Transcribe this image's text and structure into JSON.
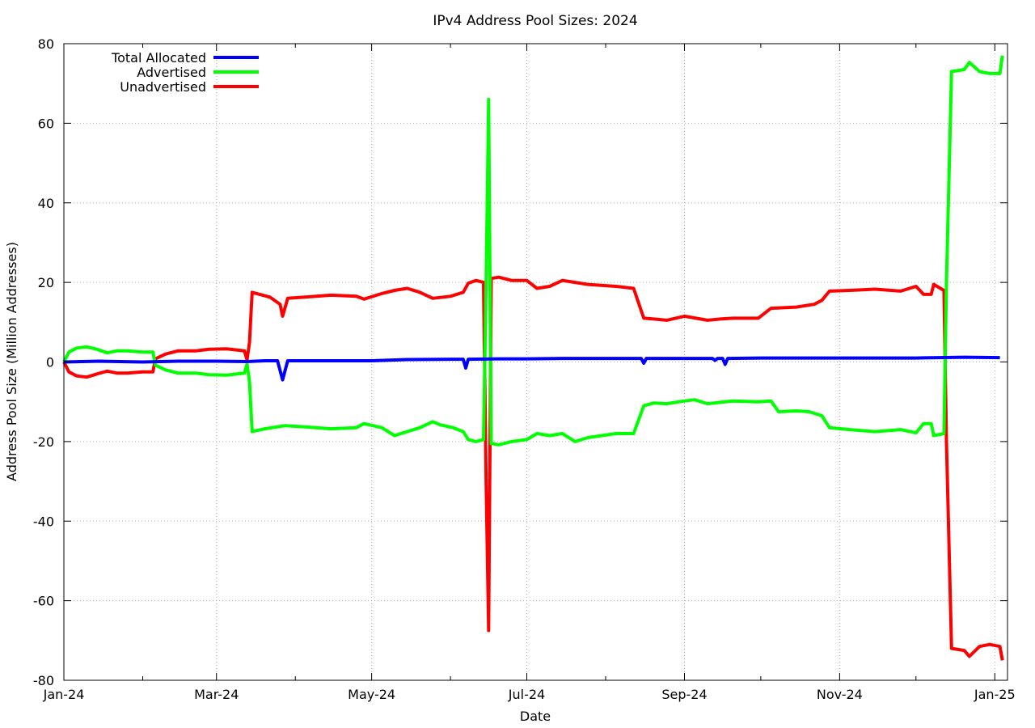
{
  "chart_data": {
    "type": "line",
    "title": "IPv4 Address Pool Sizes: 2024",
    "xlabel": "Date",
    "ylabel": "Address Pool Size (Million Addresses)",
    "x_range": [
      "2024-01-01",
      "2025-01-06"
    ],
    "ylim": [
      -80,
      80
    ],
    "x_ticks": [
      {
        "date": "2024-01-01",
        "label": "Jan-24"
      },
      {
        "date": "2024-03-01",
        "label": "Mar-24"
      },
      {
        "date": "2024-05-01",
        "label": "May-24"
      },
      {
        "date": "2024-07-01",
        "label": "Jul-24"
      },
      {
        "date": "2024-09-01",
        "label": "Sep-24"
      },
      {
        "date": "2024-11-01",
        "label": "Nov-24"
      },
      {
        "date": "2025-01-01",
        "label": "Jan-25"
      }
    ],
    "y_ticks": [
      -80,
      -60,
      -40,
      -20,
      0,
      20,
      40,
      60,
      80
    ],
    "grid": true,
    "legend_position": "top-left",
    "series": [
      {
        "name": "Total Allocated",
        "color": "#0000ff",
        "points": [
          [
            "2024-01-01",
            0
          ],
          [
            "2024-01-15",
            0.2
          ],
          [
            "2024-02-01",
            0
          ],
          [
            "2024-02-15",
            0.2
          ],
          [
            "2024-03-01",
            0.2
          ],
          [
            "2024-03-13",
            0.1
          ],
          [
            "2024-03-20",
            0.3
          ],
          [
            "2024-03-25",
            0.3
          ],
          [
            "2024-03-27",
            -4.5
          ],
          [
            "2024-03-29",
            0.3
          ],
          [
            "2024-04-15",
            0.3
          ],
          [
            "2024-05-01",
            0.3
          ],
          [
            "2024-05-15",
            0.6
          ],
          [
            "2024-06-01",
            0.7
          ],
          [
            "2024-06-06",
            0.7
          ],
          [
            "2024-06-07",
            -1.5
          ],
          [
            "2024-06-08",
            0.7
          ],
          [
            "2024-06-20",
            0.8
          ],
          [
            "2024-07-01",
            0.8
          ],
          [
            "2024-07-15",
            0.9
          ],
          [
            "2024-08-01",
            0.9
          ],
          [
            "2024-08-15",
            0.9
          ],
          [
            "2024-08-16",
            -0.3
          ],
          [
            "2024-08-17",
            0.9
          ],
          [
            "2024-09-01",
            0.9
          ],
          [
            "2024-09-12",
            0.9
          ],
          [
            "2024-09-13",
            0.4
          ],
          [
            "2024-09-14",
            0.9
          ],
          [
            "2024-09-16",
            0.9
          ],
          [
            "2024-09-17",
            -0.6
          ],
          [
            "2024-09-18",
            0.9
          ],
          [
            "2024-10-01",
            1.0
          ],
          [
            "2024-11-01",
            1.0
          ],
          [
            "2024-11-20",
            1.0
          ],
          [
            "2024-12-01",
            1.0
          ],
          [
            "2024-12-10",
            1.1
          ],
          [
            "2024-12-20",
            1.2
          ],
          [
            "2025-01-03",
            1.1
          ]
        ]
      },
      {
        "name": "Advertised",
        "color": "#00ff00",
        "points": [
          [
            "2024-01-01",
            0
          ],
          [
            "2024-01-03",
            2.5
          ],
          [
            "2024-01-06",
            3.5
          ],
          [
            "2024-01-10",
            3.8
          ],
          [
            "2024-01-14",
            3.2
          ],
          [
            "2024-01-18",
            2.3
          ],
          [
            "2024-01-22",
            2.8
          ],
          [
            "2024-01-26",
            2.8
          ],
          [
            "2024-02-01",
            2.5
          ],
          [
            "2024-02-05",
            2.5
          ],
          [
            "2024-02-06",
            -0.8
          ],
          [
            "2024-02-10",
            -2.0
          ],
          [
            "2024-02-15",
            -2.8
          ],
          [
            "2024-02-22",
            -2.8
          ],
          [
            "2024-02-27",
            -3.2
          ],
          [
            "2024-03-05",
            -3.3
          ],
          [
            "2024-03-12",
            -2.8
          ],
          [
            "2024-03-13",
            -0.5
          ],
          [
            "2024-03-14",
            -5.0
          ],
          [
            "2024-03-15",
            -17.5
          ],
          [
            "2024-03-20",
            -16.8
          ],
          [
            "2024-03-28",
            -16.0
          ],
          [
            "2024-04-05",
            -16.3
          ],
          [
            "2024-04-15",
            -16.8
          ],
          [
            "2024-04-25",
            -16.5
          ],
          [
            "2024-04-28",
            -15.5
          ],
          [
            "2024-05-05",
            -16.5
          ],
          [
            "2024-05-10",
            -18.5
          ],
          [
            "2024-05-15",
            -17.5
          ],
          [
            "2024-05-20",
            -16.5
          ],
          [
            "2024-05-25",
            -15.0
          ],
          [
            "2024-05-28",
            -15.8
          ],
          [
            "2024-06-02",
            -16.5
          ],
          [
            "2024-06-06",
            -17.5
          ],
          [
            "2024-06-08",
            -19.5
          ],
          [
            "2024-06-11",
            -20.0
          ],
          [
            "2024-06-14",
            -19.5
          ],
          [
            "2024-06-15",
            20.0
          ],
          [
            "2024-06-16",
            66.0
          ],
          [
            "2024-06-17",
            -20.5
          ],
          [
            "2024-06-20",
            -20.8
          ],
          [
            "2024-06-25",
            -20.0
          ],
          [
            "2024-07-01",
            -19.5
          ],
          [
            "2024-07-05",
            -18.0
          ],
          [
            "2024-07-10",
            -18.5
          ],
          [
            "2024-07-15",
            -18.0
          ],
          [
            "2024-07-20",
            -20.0
          ],
          [
            "2024-07-25",
            -19.0
          ],
          [
            "2024-08-05",
            -18.0
          ],
          [
            "2024-08-12",
            -18.0
          ],
          [
            "2024-08-16",
            -11.0
          ],
          [
            "2024-08-20",
            -10.3
          ],
          [
            "2024-08-25",
            -10.5
          ],
          [
            "2024-09-01",
            -9.8
          ],
          [
            "2024-09-05",
            -9.5
          ],
          [
            "2024-09-10",
            -10.5
          ],
          [
            "2024-09-20",
            -9.8
          ],
          [
            "2024-09-30",
            -10.0
          ],
          [
            "2024-10-05",
            -9.8
          ],
          [
            "2024-10-08",
            -12.5
          ],
          [
            "2024-10-15",
            -12.3
          ],
          [
            "2024-10-20",
            -12.5
          ],
          [
            "2024-10-25",
            -13.5
          ],
          [
            "2024-10-28",
            -16.5
          ],
          [
            "2024-11-05",
            -17.0
          ],
          [
            "2024-11-15",
            -17.5
          ],
          [
            "2024-11-25",
            -17.0
          ],
          [
            "2024-12-01",
            -17.8
          ],
          [
            "2024-12-04",
            -15.5
          ],
          [
            "2024-12-07",
            -15.5
          ],
          [
            "2024-12-08",
            -18.5
          ],
          [
            "2024-12-12",
            -18.0
          ],
          [
            "2024-12-13",
            20.0
          ],
          [
            "2024-12-15",
            73.0
          ],
          [
            "2024-12-20",
            73.5
          ],
          [
            "2024-12-22",
            75.3
          ],
          [
            "2024-12-26",
            73.0
          ],
          [
            "2024-12-30",
            72.5
          ],
          [
            "2025-01-03",
            72.5
          ],
          [
            "2025-01-04",
            77.0
          ]
        ]
      },
      {
        "name": "Unadvertised",
        "color": "#ff0000",
        "points": [
          [
            "2024-01-01",
            0
          ],
          [
            "2024-01-03",
            -2.5
          ],
          [
            "2024-01-06",
            -3.5
          ],
          [
            "2024-01-10",
            -3.8
          ],
          [
            "2024-01-14",
            -3.0
          ],
          [
            "2024-01-18",
            -2.3
          ],
          [
            "2024-01-22",
            -2.8
          ],
          [
            "2024-01-26",
            -2.8
          ],
          [
            "2024-02-01",
            -2.5
          ],
          [
            "2024-02-05",
            -2.5
          ],
          [
            "2024-02-06",
            0.8
          ],
          [
            "2024-02-10",
            2.0
          ],
          [
            "2024-02-15",
            2.8
          ],
          [
            "2024-02-22",
            2.8
          ],
          [
            "2024-02-27",
            3.2
          ],
          [
            "2024-03-05",
            3.3
          ],
          [
            "2024-03-12",
            2.8
          ],
          [
            "2024-03-13",
            0.5
          ],
          [
            "2024-03-14",
            5.0
          ],
          [
            "2024-03-15",
            17.5
          ],
          [
            "2024-03-22",
            16.3
          ],
          [
            "2024-03-26",
            14.5
          ],
          [
            "2024-03-27",
            11.5
          ],
          [
            "2024-03-29",
            16.0
          ],
          [
            "2024-04-05",
            16.3
          ],
          [
            "2024-04-15",
            16.8
          ],
          [
            "2024-04-25",
            16.5
          ],
          [
            "2024-04-28",
            15.8
          ],
          [
            "2024-05-05",
            17.2
          ],
          [
            "2024-05-10",
            18.0
          ],
          [
            "2024-05-15",
            18.5
          ],
          [
            "2024-05-20",
            17.5
          ],
          [
            "2024-05-25",
            16.0
          ],
          [
            "2024-06-01",
            16.5
          ],
          [
            "2024-06-06",
            17.5
          ],
          [
            "2024-06-08",
            19.8
          ],
          [
            "2024-06-11",
            20.5
          ],
          [
            "2024-06-14",
            20.0
          ],
          [
            "2024-06-15",
            -30.0
          ],
          [
            "2024-06-16",
            -67.5
          ],
          [
            "2024-06-17",
            21.0
          ],
          [
            "2024-06-20",
            21.3
          ],
          [
            "2024-06-25",
            20.5
          ],
          [
            "2024-07-01",
            20.5
          ],
          [
            "2024-07-05",
            18.5
          ],
          [
            "2024-07-10",
            19.0
          ],
          [
            "2024-07-15",
            20.5
          ],
          [
            "2024-07-20",
            20.0
          ],
          [
            "2024-07-25",
            19.5
          ],
          [
            "2024-08-05",
            19.0
          ],
          [
            "2024-08-12",
            18.5
          ],
          [
            "2024-08-16",
            11.0
          ],
          [
            "2024-08-20",
            10.8
          ],
          [
            "2024-08-25",
            10.5
          ],
          [
            "2024-09-01",
            11.5
          ],
          [
            "2024-09-10",
            10.5
          ],
          [
            "2024-09-15",
            10.8
          ],
          [
            "2024-09-20",
            11.0
          ],
          [
            "2024-09-30",
            11.0
          ],
          [
            "2024-10-05",
            13.5
          ],
          [
            "2024-10-15",
            13.8
          ],
          [
            "2024-10-22",
            14.5
          ],
          [
            "2024-10-25",
            15.5
          ],
          [
            "2024-10-28",
            17.8
          ],
          [
            "2024-11-05",
            18.0
          ],
          [
            "2024-11-15",
            18.3
          ],
          [
            "2024-11-25",
            17.8
          ],
          [
            "2024-12-01",
            19.0
          ],
          [
            "2024-12-04",
            17.0
          ],
          [
            "2024-12-07",
            17.0
          ],
          [
            "2024-12-08",
            19.5
          ],
          [
            "2024-12-12",
            18.0
          ],
          [
            "2024-12-13",
            -20.0
          ],
          [
            "2024-12-15",
            -72.0
          ],
          [
            "2024-12-20",
            -72.5
          ],
          [
            "2024-12-22",
            -74.0
          ],
          [
            "2024-12-26",
            -71.5
          ],
          [
            "2024-12-30",
            -71.0
          ],
          [
            "2025-01-03",
            -71.5
          ],
          [
            "2025-01-04",
            -75.0
          ]
        ]
      }
    ]
  }
}
